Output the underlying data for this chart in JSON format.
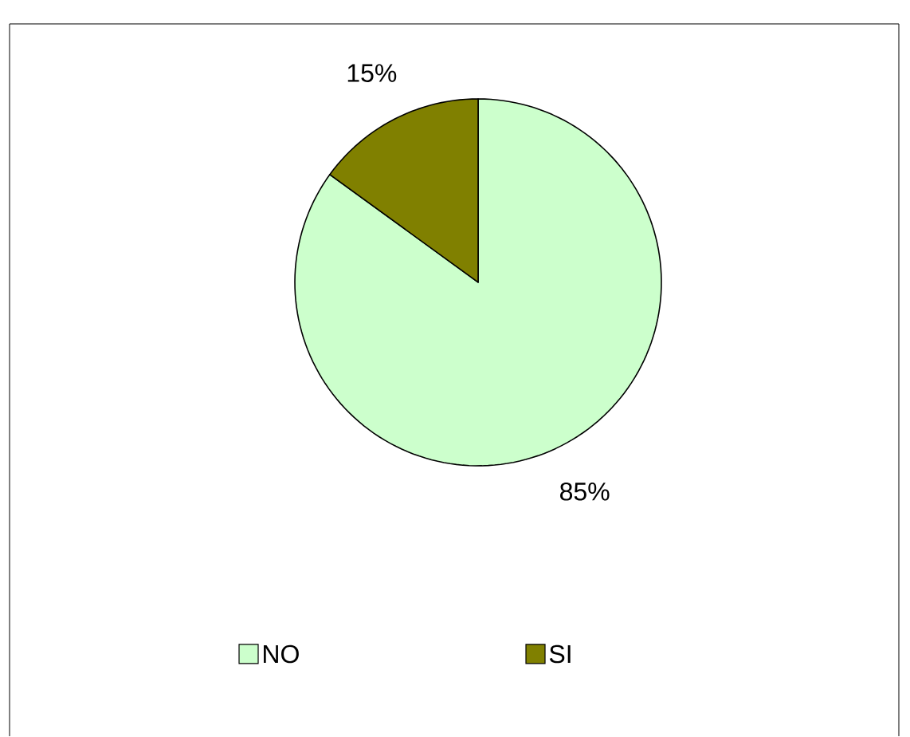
{
  "chart_data": {
    "type": "pie",
    "categories": [
      "NO",
      "SI"
    ],
    "values": [
      85,
      15
    ],
    "colors": [
      "#ccffcc",
      "#808000"
    ],
    "value_labels": [
      "85%",
      "15%"
    ],
    "legend": "bottom"
  }
}
